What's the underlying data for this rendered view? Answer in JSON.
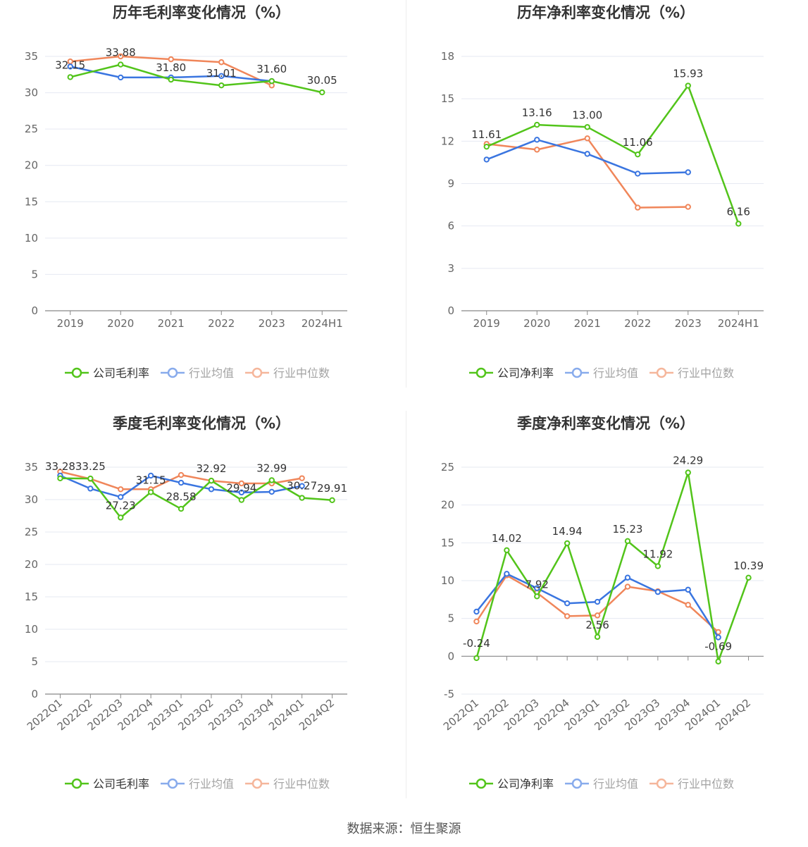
{
  "source": "数据来源：恒生聚源",
  "legend_default": [
    "行业均值",
    "行业中位数"
  ],
  "colors": {
    "company": "#52c41a",
    "avg": "#3a75e0",
    "median": "#f0865a",
    "grid": "#e6e9f2",
    "axis": "#666666",
    "label": "#333333"
  },
  "chart_data": [
    {
      "type": "line",
      "title": "历年毛利率变化情况（%）",
      "categories": [
        "2019",
        "2020",
        "2021",
        "2022",
        "2023",
        "2024H1"
      ],
      "ylim": [
        0,
        35
      ],
      "yticks": [
        0,
        5,
        10,
        15,
        20,
        25,
        30,
        35
      ],
      "legend_position": "bottom",
      "series": [
        {
          "name": "公司毛利率",
          "key": "company",
          "values": [
            32.15,
            33.88,
            31.8,
            31.01,
            31.6,
            30.05
          ],
          "labels": [
            "32.15",
            "33.88",
            "31.80",
            "31.01",
            "31.60",
            "30.05"
          ]
        },
        {
          "name": "行业均值",
          "key": "avg",
          "values": [
            33.6,
            32.1,
            32.1,
            32.3,
            31.6,
            null
          ]
        },
        {
          "name": "行业中位数",
          "key": "median",
          "values": [
            34.3,
            35.0,
            34.6,
            34.2,
            31.0,
            null
          ]
        }
      ]
    },
    {
      "type": "line",
      "title": "历年净利率变化情况（%）",
      "categories": [
        "2019",
        "2020",
        "2021",
        "2022",
        "2023",
        "2024H1"
      ],
      "ylim": [
        0,
        18
      ],
      "yticks": [
        0,
        3,
        6,
        9,
        12,
        15,
        18
      ],
      "legend_position": "bottom",
      "series": [
        {
          "name": "公司净利率",
          "key": "company",
          "values": [
            11.61,
            13.16,
            13.0,
            11.06,
            15.93,
            6.16
          ],
          "labels": [
            "11.61",
            "13.16",
            "13.00",
            "11.06",
            "15.93",
            "6.16"
          ]
        },
        {
          "name": "行业均值",
          "key": "avg",
          "values": [
            10.7,
            12.1,
            11.1,
            9.7,
            9.8,
            null
          ]
        },
        {
          "name": "行业中位数",
          "key": "median",
          "values": [
            11.8,
            11.4,
            12.2,
            7.3,
            7.35,
            null
          ]
        }
      ]
    },
    {
      "type": "line",
      "title": "季度毛利率变化情况（%）",
      "categories": [
        "2022Q1",
        "2022Q2",
        "2022Q3",
        "2022Q4",
        "2023Q1",
        "2023Q2",
        "2023Q3",
        "2023Q4",
        "2024Q1",
        "2024Q2"
      ],
      "ylim": [
        0,
        35
      ],
      "yticks": [
        0,
        5,
        10,
        15,
        20,
        25,
        30,
        35
      ],
      "legend_position": "bottom",
      "series": [
        {
          "name": "公司毛利率",
          "key": "company",
          "values": [
            33.28,
            33.25,
            27.23,
            31.15,
            28.58,
            32.92,
            29.94,
            32.99,
            30.27,
            29.91
          ],
          "labels": [
            "33.28",
            "33.25",
            "27.23",
            "31.15",
            "28.58",
            "32.92",
            "29.94",
            "32.99",
            "30.27",
            "29.91"
          ]
        },
        {
          "name": "行业均值",
          "key": "avg",
          "values": [
            33.7,
            31.7,
            30.4,
            33.7,
            32.6,
            31.6,
            31.1,
            31.2,
            32.1,
            null
          ]
        },
        {
          "name": "行业中位数",
          "key": "median",
          "values": [
            34.3,
            33.2,
            31.6,
            31.6,
            33.8,
            32.9,
            32.5,
            32.5,
            33.3,
            null
          ]
        }
      ]
    },
    {
      "type": "line",
      "title": "季度净利率变化情况（%）",
      "categories": [
        "2022Q1",
        "2022Q2",
        "2022Q3",
        "2022Q4",
        "2023Q1",
        "2023Q2",
        "2023Q3",
        "2023Q4",
        "2024Q1",
        "2024Q2"
      ],
      "ylim": [
        -5,
        25
      ],
      "yticks": [
        -5,
        0,
        5,
        10,
        15,
        20,
        25
      ],
      "legend_position": "bottom",
      "series": [
        {
          "name": "公司净利率",
          "key": "company",
          "values": [
            -0.24,
            14.02,
            7.92,
            14.94,
            2.56,
            15.23,
            11.92,
            24.29,
            -0.69,
            10.39
          ],
          "labels": [
            "-0.24",
            "14.02",
            "7.92",
            "14.94",
            "2.56",
            "15.23",
            "11.92",
            "24.29",
            "-0.69",
            "10.39"
          ]
        },
        {
          "name": "行业均值",
          "key": "avg",
          "values": [
            5.9,
            10.9,
            9.0,
            7.0,
            7.2,
            10.4,
            8.5,
            8.8,
            2.5,
            null
          ]
        },
        {
          "name": "行业中位数",
          "key": "median",
          "values": [
            4.6,
            10.7,
            8.4,
            5.3,
            5.4,
            9.2,
            8.6,
            6.8,
            3.2,
            null
          ]
        }
      ]
    }
  ]
}
